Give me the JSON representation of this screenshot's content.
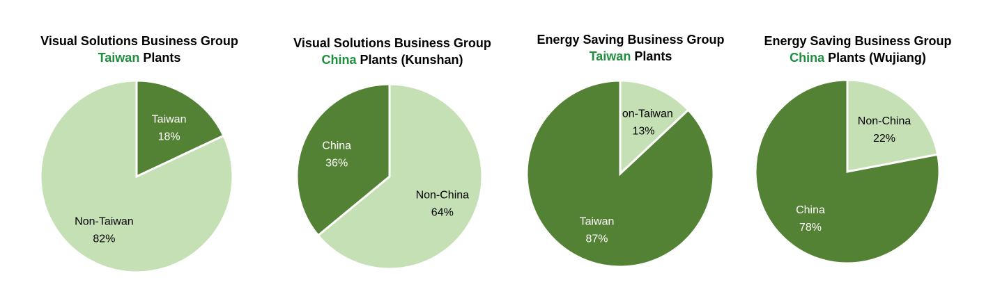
{
  "colors": {
    "light": "#c5e0b4",
    "dark": "#548235",
    "highlight": "#1e8f3e",
    "text_on_dark": "#ffffff",
    "text_on_light": "#000000"
  },
  "chart_data": [
    {
      "type": "pie",
      "title_line1": "Visual Solutions Business Group",
      "title_highlight": "Taiwan",
      "title_rest": " Plants",
      "slices": [
        {
          "label": "Taiwan",
          "value": 18,
          "display": "18%",
          "color": "dark"
        },
        {
          "label": "Non-Taiwan",
          "value": 82,
          "display": "82%",
          "color": "light"
        }
      ]
    },
    {
      "type": "pie",
      "title_line1": "Visual Solutions Business Group",
      "title_highlight": "China",
      "title_rest": " Plants (Kunshan)",
      "slices": [
        {
          "label": "Non-China",
          "value": 64,
          "display": "64%",
          "color": "light"
        },
        {
          "label": "China",
          "value": 36,
          "display": "36%",
          "color": "dark"
        }
      ]
    },
    {
      "type": "pie",
      "title_line1": "Energy Saving Business Group",
      "title_highlight": "Taiwan",
      "title_rest": " Plants",
      "slices": [
        {
          "label": "Non-Taiwan",
          "value": 13,
          "display": "13%",
          "color": "light"
        },
        {
          "label": "Taiwan",
          "value": 87,
          "display": "87%",
          "color": "dark"
        }
      ]
    },
    {
      "type": "pie",
      "title_line1": "Energy Saving Business Group",
      "title_highlight": "China",
      "title_rest": " Plants (Wujiang)",
      "slices": [
        {
          "label": "Non-China",
          "value": 22,
          "display": "22%",
          "color": "light"
        },
        {
          "label": "China",
          "value": 78,
          "display": "78%",
          "color": "dark"
        }
      ]
    }
  ]
}
